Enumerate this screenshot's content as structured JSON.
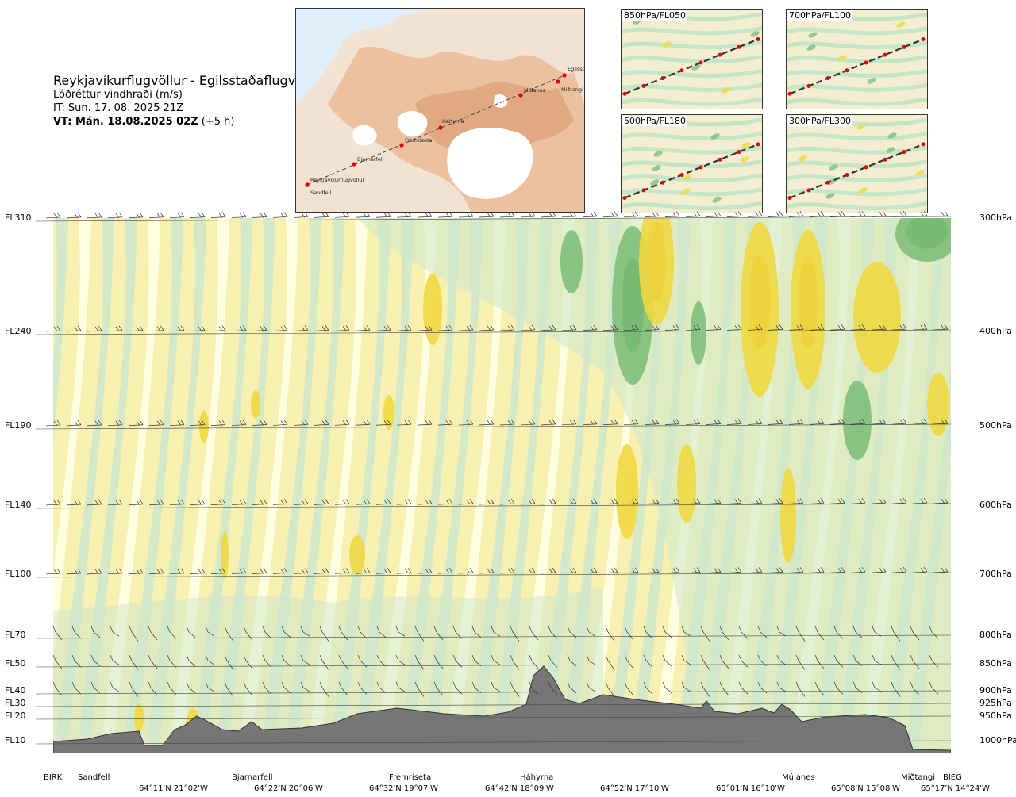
{
  "header": {
    "title": "Reykjavíkurflugvöllur - Egilsstaðaflugvöllur",
    "quantity": "Lóðréttur vindhraði (m/s)",
    "issue_time": "IT: Sun. 17. 08. 2025 21Z",
    "valid_time_bold": "VT: Mán. 18.08.2025 02Z",
    "valid_time_offset": "(+5 h)"
  },
  "map": {
    "waypoints": [
      "Reykjavíkurflugvöllur",
      "Sandfell",
      "Bjarnarfell",
      "Fremriseta",
      "Háhyrna",
      "Múlanes",
      "Miðtangi",
      "Egilsstaðir"
    ]
  },
  "mini_maps": [
    {
      "label": "850hPa/FL050"
    },
    {
      "label": "700hPa/FL100"
    },
    {
      "label": "500hPa/FL180"
    },
    {
      "label": "300hPa/FL300"
    }
  ],
  "chart_data": {
    "type": "heatmap",
    "variable": "Lóðréttur vindhraði (m/s)",
    "colors": {
      "strong_down": "#1f8a2a",
      "down": "#7fbf7b",
      "weak_down": "#cfe8cc",
      "neutral": "#ffffe6",
      "weak_up": "#f7f0b0",
      "up": "#f0d840",
      "strong_up": "#e59a1e",
      "terrain": "#767676"
    },
    "levels": [
      {
        "fl": "FL310",
        "hpa": "300hPa"
      },
      {
        "fl": "FL240",
        "hpa": "400hPa"
      },
      {
        "fl": "FL190",
        "hpa": "500hPa"
      },
      {
        "fl": "FL140",
        "hpa": "600hPa"
      },
      {
        "fl": "FL100",
        "hpa": "700hPa"
      },
      {
        "fl": "FL70",
        "hpa": "800hPa"
      },
      {
        "fl": "FL50",
        "hpa": "850hPa"
      },
      {
        "fl": "FL40",
        "hpa": "900hPa"
      },
      {
        "fl": "FL30",
        "hpa": "925hPa"
      },
      {
        "fl": "FL20",
        "hpa": "950hPa"
      },
      {
        "fl": "FL10",
        "hpa": "1000hPa"
      }
    ],
    "x_places": [
      "BIRK",
      "Sandfell",
      "Bjarnarfell",
      "Fremriseta",
      "Háhyrna",
      "Múlanes",
      "Miðtangi",
      "BIEG"
    ],
    "x_coords": [
      "64°11'N 21°02'W",
      "64°22'N 20°06'W",
      "64°32'N 19°07'W",
      "64°42'N 18°09'W",
      "64°52'N 17°10'W",
      "65°01'N 16°10'W",
      "65°08'N 15°08'W",
      "65°17'N 14°24'W"
    ]
  }
}
